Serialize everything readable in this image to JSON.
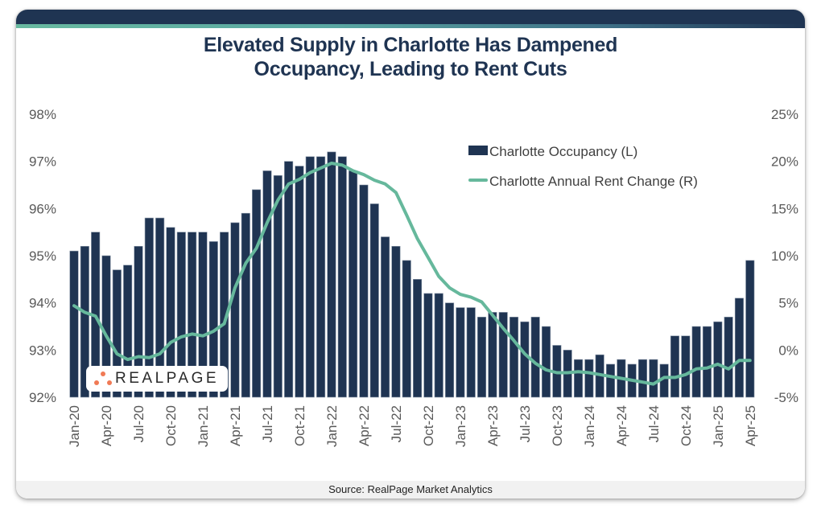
{
  "header": {
    "title_line1": "Elevated Supply in Charlotte Has Dampened",
    "title_line2": "Occupancy, Leading to Rent Cuts"
  },
  "footer": {
    "source": "Source: RealPage Market Analytics"
  },
  "logo": {
    "text": "REALPAGE",
    "dot_color": "#f07a55"
  },
  "colors": {
    "bar": "#1f3452",
    "line": "#66b89c",
    "header": "#1f3452"
  },
  "chart_data": {
    "type": "bar+line",
    "title": "Elevated Supply in Charlotte Has Dampened Occupancy, Leading to Rent Cuts",
    "xlabel": "",
    "ylabel_left": "Occupancy",
    "ylabel_right": "Annual Rent Change",
    "ylim_left": [
      92,
      98
    ],
    "ylim_right": [
      -5,
      25
    ],
    "yticks_left": [
      "98%",
      "97%",
      "96%",
      "95%",
      "94%",
      "93%",
      "92%"
    ],
    "yticks_right": [
      "25%",
      "20%",
      "15%",
      "10%",
      "5%",
      "0%",
      "-5%"
    ],
    "grid": false,
    "legend_position": "top-right",
    "x": [
      "Jan-20",
      "Feb-20",
      "Mar-20",
      "Apr-20",
      "May-20",
      "Jun-20",
      "Jul-20",
      "Aug-20",
      "Sep-20",
      "Oct-20",
      "Nov-20",
      "Dec-20",
      "Jan-21",
      "Feb-21",
      "Mar-21",
      "Apr-21",
      "May-21",
      "Jun-21",
      "Jul-21",
      "Aug-21",
      "Sep-21",
      "Oct-21",
      "Nov-21",
      "Dec-21",
      "Jan-22",
      "Feb-22",
      "Mar-22",
      "Apr-22",
      "May-22",
      "Jun-22",
      "Jul-22",
      "Aug-22",
      "Sep-22",
      "Oct-22",
      "Nov-22",
      "Dec-22",
      "Jan-23",
      "Feb-23",
      "Mar-23",
      "Apr-23",
      "May-23",
      "Jun-23",
      "Jul-23",
      "Aug-23",
      "Sep-23",
      "Oct-23",
      "Nov-23",
      "Dec-23",
      "Jan-24",
      "Feb-24",
      "Mar-24",
      "Apr-24",
      "May-24",
      "Jun-24",
      "Jul-24",
      "Aug-24",
      "Sep-24",
      "Oct-24",
      "Nov-24",
      "Dec-24",
      "Jan-25",
      "Feb-25",
      "Mar-25",
      "Apr-25"
    ],
    "xtick_labels": [
      "Jan-20",
      "Apr-20",
      "Jul-20",
      "Oct-20",
      "Jan-21",
      "Apr-21",
      "Jul-21",
      "Oct-21",
      "Jan-22",
      "Apr-22",
      "Jul-22",
      "Oct-22",
      "Jan-23",
      "Apr-23",
      "Jul-23",
      "Oct-23",
      "Jan-24",
      "Apr-24",
      "Jul-24",
      "Oct-24",
      "Jan-25",
      "Apr-25"
    ],
    "series": [
      {
        "name": "Charlotte Occupancy (L)",
        "type": "bar",
        "axis": "left",
        "unit": "%",
        "values": [
          95.1,
          95.2,
          95.5,
          95.0,
          94.7,
          94.8,
          95.2,
          95.8,
          95.8,
          95.6,
          95.5,
          95.5,
          95.5,
          95.3,
          95.5,
          95.7,
          95.9,
          96.4,
          96.8,
          96.7,
          97.0,
          96.9,
          97.1,
          97.1,
          97.2,
          97.1,
          96.8,
          96.5,
          96.1,
          95.4,
          95.2,
          94.9,
          94.5,
          94.2,
          94.2,
          94.0,
          93.9,
          93.9,
          93.7,
          93.8,
          93.8,
          93.7,
          93.6,
          93.7,
          93.5,
          93.1,
          93.0,
          92.8,
          92.8,
          92.9,
          92.7,
          92.8,
          92.7,
          92.8,
          92.8,
          92.7,
          93.3,
          93.3,
          93.5,
          93.5,
          93.6,
          93.7,
          94.1,
          94.9
        ]
      },
      {
        "name": "Charlotte Annual Rent Change (R)",
        "type": "line",
        "axis": "right",
        "unit": "%",
        "values": [
          4.7,
          4.0,
          3.6,
          1.5,
          -0.4,
          -1.0,
          -0.7,
          -0.8,
          -0.4,
          0.8,
          1.4,
          1.7,
          1.5,
          2.0,
          2.8,
          6.6,
          9.2,
          10.8,
          13.5,
          15.9,
          17.6,
          18.1,
          18.8,
          19.3,
          19.8,
          19.6,
          19.0,
          18.6,
          18.0,
          17.6,
          16.7,
          14.3,
          11.8,
          9.8,
          7.8,
          6.6,
          5.9,
          5.6,
          5.1,
          3.7,
          2.3,
          1.0,
          -0.4,
          -1.4,
          -2.1,
          -2.4,
          -2.4,
          -2.3,
          -2.4,
          -2.6,
          -2.8,
          -3.0,
          -3.2,
          -3.4,
          -3.6,
          -2.9,
          -2.9,
          -2.6,
          -2.0,
          -1.9,
          -1.5,
          -2.0,
          -1.1,
          -1.1
        ]
      }
    ]
  }
}
